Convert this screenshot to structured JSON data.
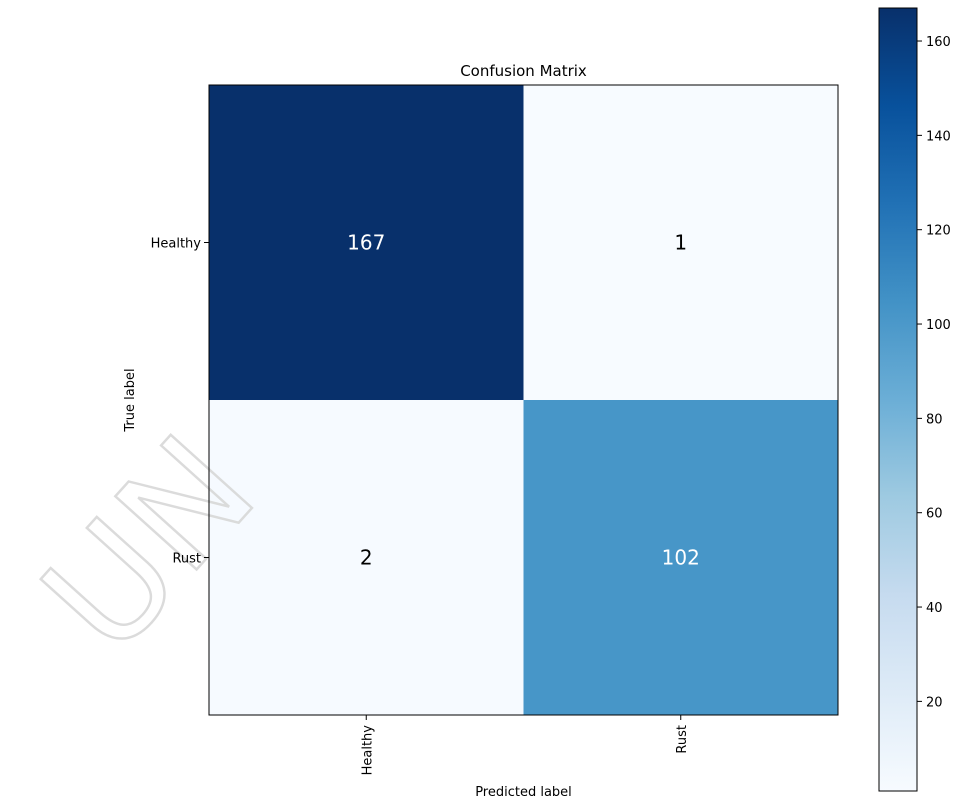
{
  "chart_data": {
    "type": "heatmap",
    "title": "Confusion Matrix",
    "xlabel": "Predicted label",
    "ylabel": "True label",
    "x_categories": [
      "Healthy",
      "Rust"
    ],
    "y_categories": [
      "Healthy",
      "Rust"
    ],
    "values": [
      [
        167,
        1
      ],
      [
        2,
        102
      ]
    ],
    "colormap": "Blues",
    "colorbar": {
      "min": 1,
      "max": 167,
      "ticks": [
        20,
        40,
        60,
        80,
        100,
        120,
        140,
        160
      ]
    },
    "grid": false
  },
  "watermark": {
    "text": "UN"
  }
}
